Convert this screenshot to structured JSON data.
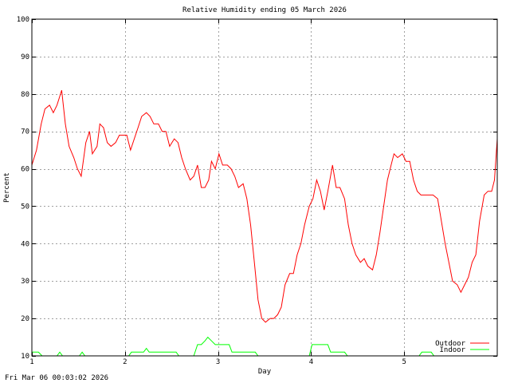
{
  "chart_data": {
    "type": "line",
    "title": "Relative Humidity ending 05 March 2026",
    "xlabel": "Day",
    "ylabel": "Percent",
    "xlim": [
      1,
      6
    ],
    "ylim": [
      10,
      100
    ],
    "x_ticks": [
      1,
      2,
      3,
      4,
      5
    ],
    "y_ticks": [
      10,
      20,
      30,
      40,
      50,
      60,
      70,
      80,
      90,
      100
    ],
    "grid": true,
    "legend_position": "bottom-right",
    "series": [
      {
        "name": "Outdoor",
        "color": "#ff0000",
        "points": [
          [
            1.0,
            61
          ],
          [
            1.05,
            65
          ],
          [
            1.1,
            72
          ],
          [
            1.14,
            76
          ],
          [
            1.19,
            77
          ],
          [
            1.23,
            75
          ],
          [
            1.27,
            77
          ],
          [
            1.32,
            81
          ],
          [
            1.36,
            72
          ],
          [
            1.4,
            66
          ],
          [
            1.45,
            63
          ],
          [
            1.49,
            60
          ],
          [
            1.53,
            58
          ],
          [
            1.58,
            67
          ],
          [
            1.62,
            70
          ],
          [
            1.65,
            64
          ],
          [
            1.7,
            66
          ],
          [
            1.73,
            72
          ],
          [
            1.77,
            71
          ],
          [
            1.81,
            67
          ],
          [
            1.85,
            66
          ],
          [
            1.9,
            67
          ],
          [
            1.94,
            69
          ],
          [
            1.98,
            69
          ],
          [
            2.02,
            69
          ],
          [
            2.06,
            65
          ],
          [
            2.1,
            68
          ],
          [
            2.14,
            71
          ],
          [
            2.18,
            74
          ],
          [
            2.23,
            75
          ],
          [
            2.27,
            74
          ],
          [
            2.31,
            72
          ],
          [
            2.36,
            72
          ],
          [
            2.4,
            70
          ],
          [
            2.44,
            70
          ],
          [
            2.48,
            66
          ],
          [
            2.53,
            68
          ],
          [
            2.57,
            67
          ],
          [
            2.61,
            63
          ],
          [
            2.65,
            60
          ],
          [
            2.7,
            57
          ],
          [
            2.74,
            58
          ],
          [
            2.78,
            61
          ],
          [
            2.82,
            55
          ],
          [
            2.86,
            55
          ],
          [
            2.9,
            57
          ],
          [
            2.93,
            62
          ],
          [
            2.97,
            60
          ],
          [
            3.01,
            64
          ],
          [
            3.05,
            61
          ],
          [
            3.1,
            61
          ],
          [
            3.14,
            60
          ],
          [
            3.18,
            58
          ],
          [
            3.22,
            55
          ],
          [
            3.27,
            56
          ],
          [
            3.31,
            52
          ],
          [
            3.35,
            45
          ],
          [
            3.39,
            35
          ],
          [
            3.43,
            25
          ],
          [
            3.47,
            20
          ],
          [
            3.51,
            19
          ],
          [
            3.56,
            20
          ],
          [
            3.6,
            20
          ],
          [
            3.64,
            21
          ],
          [
            3.68,
            23
          ],
          [
            3.72,
            29
          ],
          [
            3.77,
            32
          ],
          [
            3.81,
            32
          ],
          [
            3.85,
            37
          ],
          [
            3.89,
            40
          ],
          [
            3.93,
            45
          ],
          [
            3.98,
            50
          ],
          [
            4.02,
            52
          ],
          [
            4.06,
            57
          ],
          [
            4.1,
            54
          ],
          [
            4.14,
            49
          ],
          [
            4.18,
            54
          ],
          [
            4.23,
            61
          ],
          [
            4.27,
            55
          ],
          [
            4.31,
            55
          ],
          [
            4.36,
            52
          ],
          [
            4.4,
            45
          ],
          [
            4.44,
            40
          ],
          [
            4.48,
            37
          ],
          [
            4.53,
            35
          ],
          [
            4.57,
            36
          ],
          [
            4.61,
            34
          ],
          [
            4.66,
            33
          ],
          [
            4.7,
            37
          ],
          [
            4.74,
            43
          ],
          [
            4.78,
            50
          ],
          [
            4.82,
            57
          ],
          [
            4.86,
            61
          ],
          [
            4.89,
            64
          ],
          [
            4.93,
            63
          ],
          [
            4.98,
            64
          ],
          [
            5.02,
            62
          ],
          [
            5.06,
            62
          ],
          [
            5.1,
            57
          ],
          [
            5.14,
            54
          ],
          [
            5.18,
            53
          ],
          [
            5.23,
            53
          ],
          [
            5.27,
            53
          ],
          [
            5.31,
            53
          ],
          [
            5.36,
            52
          ],
          [
            5.4,
            46
          ],
          [
            5.44,
            40
          ],
          [
            5.48,
            35
          ],
          [
            5.52,
            30
          ],
          [
            5.57,
            29
          ],
          [
            5.61,
            27
          ],
          [
            5.65,
            29
          ],
          [
            5.69,
            31
          ],
          [
            5.73,
            35
          ],
          [
            5.77,
            37
          ],
          [
            5.81,
            46
          ],
          [
            5.86,
            53
          ],
          [
            5.9,
            54
          ],
          [
            5.94,
            54
          ],
          [
            5.97,
            57
          ],
          [
            6.0,
            68
          ]
        ]
      },
      {
        "name": "Indoor",
        "color": "#00ff00",
        "points": [
          [
            1.0,
            11
          ],
          [
            1.07,
            11
          ],
          [
            1.11,
            10
          ],
          [
            1.27,
            10
          ],
          [
            1.3,
            11
          ],
          [
            1.33,
            10
          ],
          [
            1.51,
            10
          ],
          [
            1.54,
            11
          ],
          [
            1.57,
            10
          ],
          [
            2.04,
            10
          ],
          [
            2.07,
            11
          ],
          [
            2.2,
            11
          ],
          [
            2.23,
            12
          ],
          [
            2.26,
            11
          ],
          [
            2.55,
            11
          ],
          [
            2.58,
            10
          ],
          [
            2.74,
            10
          ],
          [
            2.78,
            13
          ],
          [
            2.82,
            13
          ],
          [
            2.86,
            14
          ],
          [
            2.89,
            15
          ],
          [
            2.93,
            14
          ],
          [
            2.97,
            13
          ],
          [
            3.12,
            13
          ],
          [
            3.15,
            11
          ],
          [
            3.4,
            11
          ],
          [
            3.43,
            10
          ],
          [
            3.98,
            10
          ],
          [
            4.01,
            13
          ],
          [
            4.18,
            13
          ],
          [
            4.21,
            11
          ],
          [
            4.36,
            11
          ],
          [
            4.39,
            10
          ],
          [
            5.16,
            10
          ],
          [
            5.19,
            11
          ],
          [
            5.29,
            11
          ],
          [
            5.32,
            10
          ],
          [
            6.0,
            10
          ]
        ]
      }
    ]
  },
  "footer": {
    "timestamp": "Fri Mar 06 00:03:02 2026"
  }
}
